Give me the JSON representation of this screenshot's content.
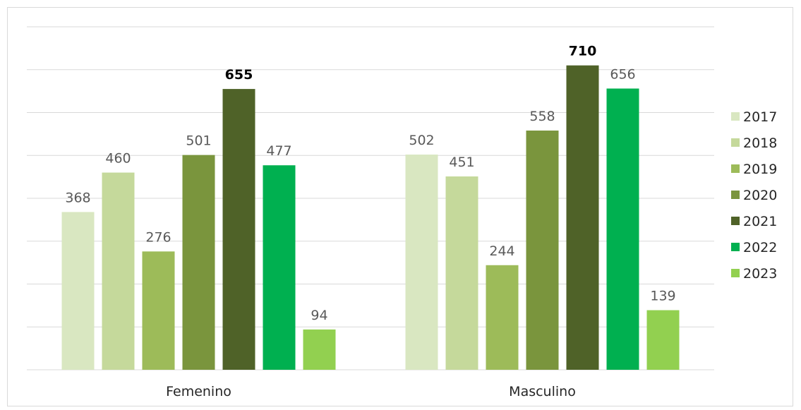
{
  "chart_data": {
    "type": "bar",
    "title": "",
    "xlabel": "",
    "ylabel": "",
    "categories": [
      "Femenino",
      "Masculino"
    ],
    "series": [
      {
        "name": "2017",
        "color": "#d9e7c1",
        "values": [
          368,
          502
        ]
      },
      {
        "name": "2018",
        "color": "#c5d99b",
        "values": [
          460,
          451
        ]
      },
      {
        "name": "2019",
        "color": "#9dbb59",
        "values": [
          276,
          244
        ]
      },
      {
        "name": "2020",
        "color": "#7a953d",
        "values": [
          501,
          558
        ]
      },
      {
        "name": "2021",
        "color": "#4f6228",
        "values": [
          655,
          710
        ]
      },
      {
        "name": "2022",
        "color": "#00b050",
        "values": [
          477,
          656
        ]
      },
      {
        "name": "2023",
        "color": "#92d050",
        "values": [
          94,
          139
        ]
      }
    ],
    "highlighted_series": "2021",
    "ylim": [
      0,
      800
    ],
    "gridlines": true,
    "y_axis_labels_shown": false,
    "legend_position": "right"
  }
}
